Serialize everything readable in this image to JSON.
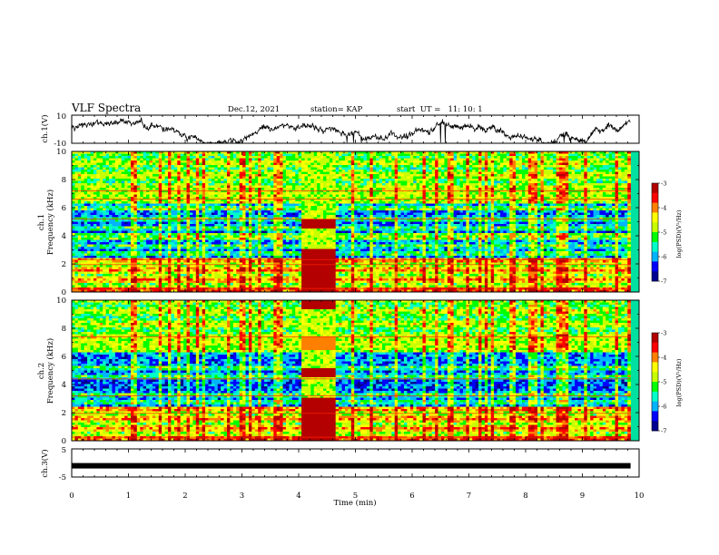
{
  "header": {
    "title": "VLF Spectra",
    "date": "Dec.12, 2021",
    "station": "station= KAP",
    "start_time": "start  UT =   11: 10: 1"
  },
  "chart_data": [
    {
      "type": "line",
      "name": "ch1-waveform",
      "ylabel": "ch.1(V)",
      "ylim": [
        -10,
        10
      ],
      "yticks": [
        "10",
        "-10"
      ],
      "xlim": [
        0,
        10
      ],
      "data_end_min": 9.85
    },
    {
      "type": "heatmap",
      "name": "ch1-spectrogram",
      "ylabel": "ch.1\nFrequency (kHz)",
      "ylabel_line1": "ch.1",
      "ylabel_line2": "Frequency (kHz)",
      "ylim": [
        0,
        10
      ],
      "yticks": [
        "0",
        "2",
        "4",
        "6",
        "8",
        "10"
      ],
      "xlim": [
        0,
        10
      ],
      "colorbar": {
        "label": "log(PSD)(V²/Hz)",
        "range": [
          -7,
          -3
        ],
        "ticks": [
          "-3",
          "-4",
          "-5",
          "-6",
          "-7"
        ]
      }
    },
    {
      "type": "heatmap",
      "name": "ch2-spectrogram",
      "ylabel_line1": "ch.2",
      "ylabel_line2": "Frequency (kHz)",
      "ylim": [
        0,
        10
      ],
      "yticks": [
        "0",
        "2",
        "4",
        "6",
        "8",
        "10"
      ],
      "xlim": [
        0,
        10
      ],
      "colorbar": {
        "label": "log(PSD)(V²/Hz)",
        "range": [
          -7,
          -3
        ],
        "ticks": [
          "-3",
          "-4",
          "-5",
          "-6",
          "-7"
        ]
      }
    },
    {
      "type": "line",
      "name": "ch3-waveform",
      "ylabel": "ch.3(V)",
      "ylim": [
        -5,
        5
      ],
      "yticks": [
        "5",
        "-5"
      ],
      "xlim": [
        0,
        10
      ],
      "constant_value": -1,
      "data_end_min": 9.85
    }
  ],
  "xaxis": {
    "label": "Time (min)",
    "ticks": [
      "0",
      "1",
      "2",
      "3",
      "4",
      "5",
      "6",
      "7",
      "8",
      "9",
      "10"
    ]
  },
  "colors": {
    "line": "#000000",
    "colormap": [
      "#000090",
      "#0000ff",
      "#00b4ff",
      "#00ffc8",
      "#00ff00",
      "#c8ff00",
      "#ffff00",
      "#ff8000",
      "#ff0000",
      "#b40000"
    ]
  }
}
